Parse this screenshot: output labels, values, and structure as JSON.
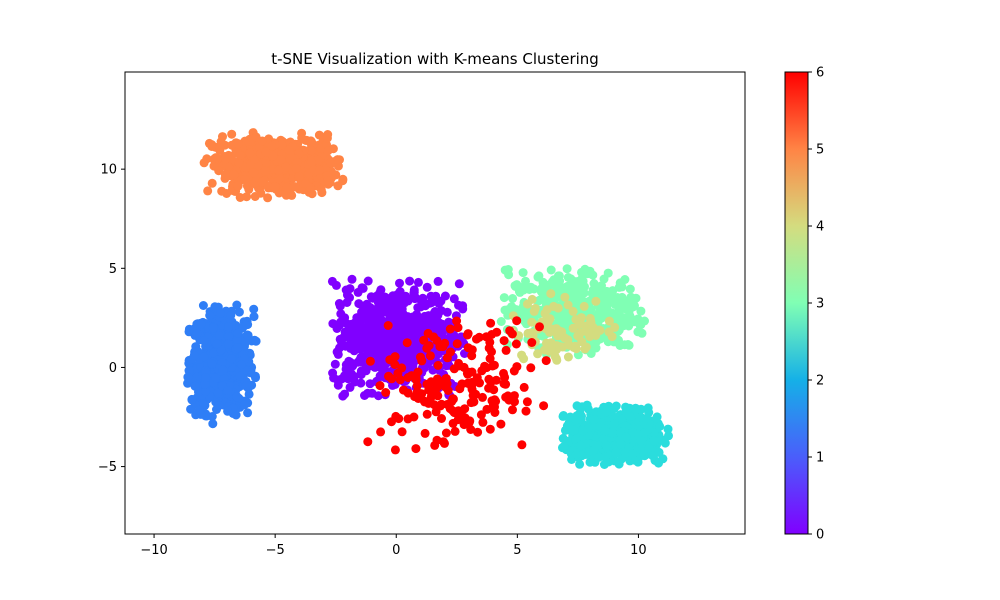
{
  "chart_data": {
    "type": "scatter",
    "title": "t-SNE Visualization with K-means Clustering",
    "xlabel": "",
    "ylabel": "",
    "xlim": [
      -11.2,
      14.4
    ],
    "ylim": [
      -8.4,
      14.9
    ],
    "x_ticks": [
      -10,
      -5,
      0,
      5,
      10
    ],
    "y_ticks": [
      -5,
      0,
      5,
      10
    ],
    "x_tick_labels": [
      "−10",
      "−5",
      "0",
      "5",
      "10"
    ],
    "y_tick_labels": [
      "−5",
      "0",
      "5",
      "10"
    ],
    "grid": false,
    "colormap": "rainbow",
    "colorbar": {
      "min": 0,
      "max": 6,
      "ticks": [
        0,
        1,
        2,
        3,
        4,
        5,
        6
      ],
      "tick_labels": [
        "0",
        "1",
        "2",
        "3",
        "4",
        "5",
        "6"
      ]
    },
    "clusters": [
      {
        "label": 0,
        "color": "#8000ff",
        "center": [
          0.0,
          1.5
        ],
        "spread": [
          2.6,
          2.7
        ],
        "count": 650
      },
      {
        "label": 1,
        "color": "#2f7ef6",
        "center": [
          -7.2,
          0.3
        ],
        "spread": [
          1.3,
          2.6
        ],
        "count": 750
      },
      {
        "label": 2,
        "color": "#2adddd",
        "center": [
          9.0,
          -3.4
        ],
        "spread": [
          2.1,
          1.4
        ],
        "count": 550
      },
      {
        "label": 3,
        "color": "#80ffb4",
        "center": [
          7.3,
          2.8
        ],
        "spread": [
          2.7,
          2.0
        ],
        "count": 450
      },
      {
        "label": 4,
        "color": "#d4dc7f",
        "center": [
          7.0,
          2.0
        ],
        "spread": [
          2.3,
          1.6
        ],
        "count": 90
      },
      {
        "label": 5,
        "color": "#ff8445",
        "center": [
          -5.0,
          10.2
        ],
        "spread": [
          2.6,
          1.5
        ],
        "count": 560
      },
      {
        "label": 6,
        "color": "#ff0000",
        "center": [
          2.5,
          -1.0
        ],
        "spread": [
          3.5,
          3.2
        ],
        "count": 200
      }
    ]
  }
}
